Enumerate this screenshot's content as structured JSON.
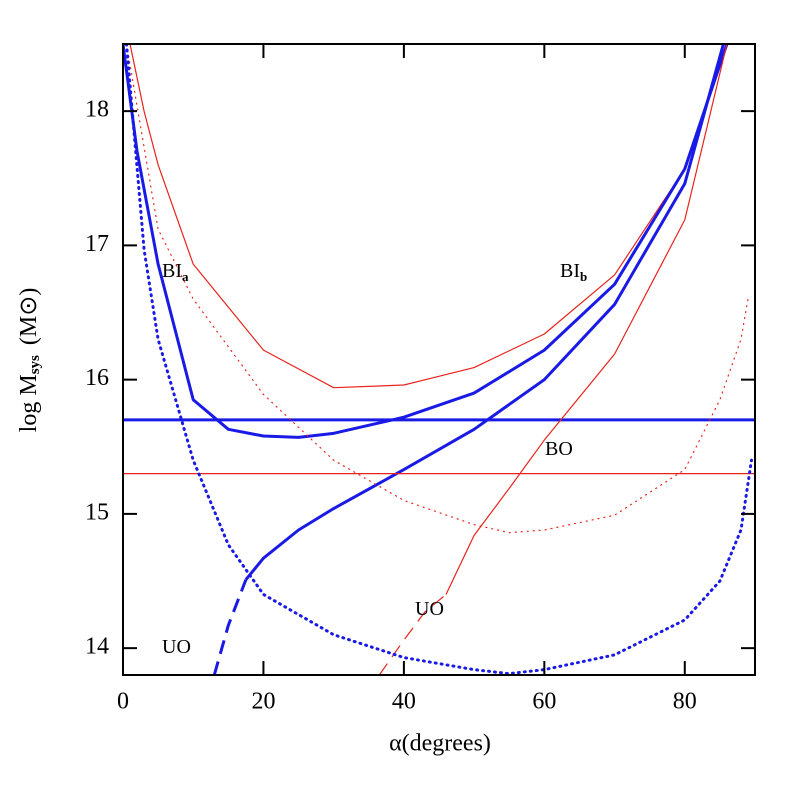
{
  "chart_data": {
    "type": "line",
    "xlabel": "α(degrees)",
    "ylabel": {
      "text": "log  M",
      "sub": "sys",
      "unit": "(M⊙)"
    },
    "xlim": [
      0,
      90
    ],
    "ylim": [
      13.8,
      18.5
    ],
    "xticks": [
      0,
      20,
      40,
      60,
      80
    ],
    "yticks": [
      14,
      15,
      16,
      17,
      18
    ],
    "annotations": [
      {
        "text": "BI",
        "sub": "a"
      },
      {
        "text": "BI",
        "sub": "b"
      },
      {
        "text": "BO"
      },
      {
        "text": "UO"
      },
      {
        "text": "UO"
      }
    ],
    "series": [
      {
        "color": "#e8231c",
        "style": "solid",
        "width": 1.2,
        "x": [
          1,
          3,
          5,
          10,
          20,
          30,
          40,
          50,
          60,
          70,
          80,
          86
        ],
        "values": [
          18.5,
          18.0,
          17.6,
          16.86,
          16.22,
          15.94,
          15.96,
          16.09,
          16.34,
          16.78,
          17.57,
          18.5
        ]
      },
      {
        "color": "#1a1ae6",
        "style": "solid",
        "width": 3,
        "x": [
          0,
          2,
          5,
          10,
          15,
          20,
          25,
          30,
          40,
          50,
          60,
          70,
          80,
          86
        ],
        "values": [
          18.5,
          17.7,
          16.86,
          15.85,
          15.63,
          15.58,
          15.57,
          15.6,
          15.72,
          15.9,
          16.22,
          16.71,
          17.57,
          18.5
        ]
      },
      {
        "color": "#1a1ae6",
        "style": "dashed",
        "width": 3,
        "x": [
          13,
          15,
          17.5
        ],
        "values": [
          13.8,
          14.17,
          14.51
        ]
      },
      {
        "color": "#1a1ae6",
        "style": "solid",
        "width": 3,
        "x": [
          17.5,
          20,
          25,
          30,
          40,
          50,
          60,
          70,
          80,
          85.5
        ],
        "values": [
          14.51,
          14.67,
          14.88,
          15.04,
          15.33,
          15.63,
          16.0,
          16.56,
          17.46,
          18.5
        ]
      },
      {
        "color": "#1a1ae6",
        "style": "solid",
        "width": 3,
        "x": [
          0,
          90
        ],
        "values": [
          15.7,
          15.7
        ]
      },
      {
        "color": "#e8231c",
        "style": "solid",
        "width": 1.2,
        "x": [
          0,
          90
        ],
        "values": [
          15.3,
          15.3
        ]
      },
      {
        "color": "#e8231c",
        "style": "dashed",
        "width": 1.2,
        "x": [
          36.5,
          40,
          43,
          46
        ],
        "values": [
          13.8,
          14.06,
          14.27,
          14.4
        ]
      },
      {
        "color": "#e8231c",
        "style": "solid",
        "width": 1.2,
        "x": [
          46,
          50,
          55,
          60,
          70,
          80,
          86
        ],
        "values": [
          14.4,
          14.84,
          15.19,
          15.55,
          16.19,
          17.19,
          18.5
        ]
      },
      {
        "color": "#e8231c",
        "style": "dotted",
        "width": 1.2,
        "x": [
          0.5,
          5,
          10,
          20,
          30,
          40,
          50,
          55,
          60,
          70,
          80,
          85,
          88,
          89
        ],
        "values": [
          18.5,
          17.12,
          16.6,
          15.89,
          15.4,
          15.1,
          14.92,
          14.86,
          14.88,
          14.99,
          15.33,
          15.85,
          16.3,
          16.6
        ]
      },
      {
        "color": "#1a1ae6",
        "style": "dotted",
        "width": 3,
        "x": [
          0.5,
          3,
          5,
          10,
          15,
          20,
          30,
          40,
          50,
          55,
          60,
          70,
          80,
          85,
          88,
          89.5
        ],
        "values": [
          18.5,
          16.97,
          16.3,
          15.4,
          14.77,
          14.4,
          14.1,
          13.93,
          13.84,
          13.81,
          13.84,
          13.95,
          14.21,
          14.5,
          14.88,
          15.4
        ]
      }
    ]
  }
}
